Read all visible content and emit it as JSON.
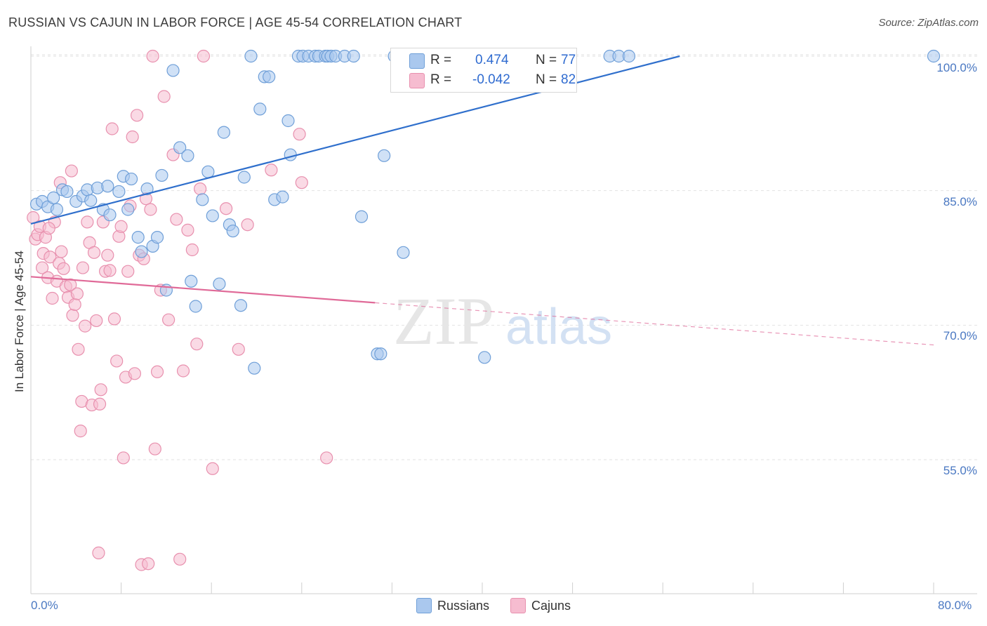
{
  "title": "RUSSIAN VS CAJUN IN LABOR FORCE | AGE 45-54 CORRELATION CHART",
  "source": "Source: ZipAtlas.com",
  "colors": {
    "russians_fill": "#aac8ee",
    "russians_stroke": "#6f9fd8",
    "russians_line": "#2f6fcc",
    "cajuns_fill": "#f6bcd0",
    "cajuns_stroke": "#e890ae",
    "cajuns_line": "#e06a98"
  },
  "legend": {
    "r_label": "R =",
    "n_label": "N =",
    "russians": {
      "r": "0.474",
      "n": "77"
    },
    "cajuns": {
      "r": "-0.042",
      "n": "82"
    }
  },
  "bottom_legend": {
    "russians": "Russians",
    "cajuns": "Cajuns"
  },
  "watermark": {
    "zip": "ZIP",
    "atlas": "atlas"
  },
  "chart_data": {
    "type": "scatter",
    "title": "RUSSIAN VS CAJUN IN LABOR FORCE | AGE 45-54 CORRELATION CHART",
    "xlabel": "",
    "ylabel": "In Labor Force | Age 45-54",
    "xlim": [
      0,
      80
    ],
    "ylim": [
      39,
      101
    ],
    "x_tick_labels": [
      "0.0%",
      "80.0%"
    ],
    "y_ticks": [
      55,
      70,
      85,
      100
    ],
    "y_tick_labels": [
      "55.0%",
      "70.0%",
      "85.0%",
      "100.0%"
    ],
    "series": [
      {
        "name": "Russians",
        "trend": {
          "x": [
            0,
            57.5
          ],
          "y": [
            81.3,
            100
          ]
        },
        "points": [
          [
            0.5,
            83.5
          ],
          [
            1,
            83.8
          ],
          [
            1.5,
            83.2
          ],
          [
            2,
            84.2
          ],
          [
            2.3,
            82.9
          ],
          [
            2.8,
            85.1
          ],
          [
            3.2,
            84.9
          ],
          [
            4,
            83.8
          ],
          [
            4.6,
            84.4
          ],
          [
            5,
            85.1
          ],
          [
            5.3,
            83.9
          ],
          [
            5.9,
            85.3
          ],
          [
            6.4,
            82.9
          ],
          [
            6.8,
            85.5
          ],
          [
            7,
            82.3
          ],
          [
            7.8,
            84.9
          ],
          [
            8.2,
            86.6
          ],
          [
            8.6,
            82.9
          ],
          [
            8.9,
            86.3
          ],
          [
            9.5,
            79.8
          ],
          [
            9.8,
            78.2
          ],
          [
            10.3,
            85.2
          ],
          [
            10.8,
            78.8
          ],
          [
            11.2,
            79.8
          ],
          [
            11.6,
            86.7
          ],
          [
            12,
            73.9
          ],
          [
            12.6,
            98.4
          ],
          [
            13.2,
            89.8
          ],
          [
            13.9,
            88.9
          ],
          [
            14.2,
            74.9
          ],
          [
            14.6,
            72.1
          ],
          [
            15.2,
            84.0
          ],
          [
            15.7,
            87.1
          ],
          [
            16.1,
            82.2
          ],
          [
            16.7,
            74.6
          ],
          [
            17.1,
            91.5
          ],
          [
            17.6,
            81.2
          ],
          [
            17.9,
            80.5
          ],
          [
            18.6,
            72.2
          ],
          [
            18.9,
            86.5
          ],
          [
            19.5,
            100
          ],
          [
            19.8,
            65.2
          ],
          [
            20.3,
            94.1
          ],
          [
            20.7,
            97.7
          ],
          [
            21.1,
            97.7
          ],
          [
            21.6,
            84.0
          ],
          [
            22.3,
            84.3
          ],
          [
            22.8,
            92.8
          ],
          [
            23,
            89.0
          ],
          [
            23.7,
            100
          ],
          [
            24.1,
            100
          ],
          [
            24.6,
            100
          ],
          [
            25.2,
            100
          ],
          [
            25.5,
            100
          ],
          [
            26.1,
            100
          ],
          [
            26.3,
            100
          ],
          [
            26.6,
            100
          ],
          [
            27,
            100
          ],
          [
            27.8,
            100
          ],
          [
            28.6,
            100
          ],
          [
            29.3,
            82.1
          ],
          [
            30.7,
            66.8
          ],
          [
            31,
            66.8
          ],
          [
            31.3,
            88.9
          ],
          [
            32.2,
            100
          ],
          [
            32.6,
            100
          ],
          [
            33,
            78.1
          ],
          [
            34.2,
            100
          ],
          [
            35.6,
            100
          ],
          [
            36.5,
            100
          ],
          [
            37.6,
            100
          ],
          [
            39,
            100
          ],
          [
            40.2,
            66.4
          ],
          [
            51.3,
            100
          ],
          [
            52.1,
            100
          ],
          [
            53,
            100
          ],
          [
            80,
            100
          ]
        ]
      },
      {
        "name": "Cajuns",
        "trend": {
          "x": [
            0,
            30.5
          ],
          "y": [
            75.4,
            72.5
          ]
        },
        "points": [
          [
            0.2,
            82.0
          ],
          [
            0.4,
            79.6
          ],
          [
            0.6,
            80.1
          ],
          [
            0.8,
            81.0
          ],
          [
            1,
            76.4
          ],
          [
            1.1,
            78.0
          ],
          [
            1.3,
            79.8
          ],
          [
            1.5,
            75.3
          ],
          [
            1.7,
            77.6
          ],
          [
            1.9,
            73.0
          ],
          [
            2.1,
            81.5
          ],
          [
            2.3,
            74.9
          ],
          [
            2.5,
            76.9
          ],
          [
            2.7,
            78.2
          ],
          [
            2.9,
            76.3
          ],
          [
            3.1,
            74.3
          ],
          [
            3.3,
            73.1
          ],
          [
            3.5,
            74.5
          ],
          [
            3.7,
            71.1
          ],
          [
            3.9,
            72.3
          ],
          [
            4.1,
            73.5
          ],
          [
            4.2,
            67.3
          ],
          [
            4.4,
            58.2
          ],
          [
            4.5,
            61.5
          ],
          [
            4.6,
            76.4
          ],
          [
            4.8,
            69.9
          ],
          [
            5,
            81.5
          ],
          [
            5.2,
            79.2
          ],
          [
            5.4,
            61.1
          ],
          [
            5.6,
            78.1
          ],
          [
            5.8,
            70.5
          ],
          [
            6,
            44.6
          ],
          [
            6.2,
            62.8
          ],
          [
            6.4,
            81.5
          ],
          [
            6.6,
            76.0
          ],
          [
            6.8,
            77.8
          ],
          [
            7,
            76.1
          ],
          [
            7.2,
            91.9
          ],
          [
            7.4,
            70.7
          ],
          [
            7.6,
            66.0
          ],
          [
            7.8,
            79.9
          ],
          [
            8,
            81.0
          ],
          [
            8.2,
            55.2
          ],
          [
            8.4,
            64.2
          ],
          [
            8.6,
            76.0
          ],
          [
            8.8,
            83.3
          ],
          [
            9,
            91.0
          ],
          [
            9.2,
            64.6
          ],
          [
            9.4,
            93.4
          ],
          [
            9.6,
            77.8
          ],
          [
            9.8,
            43.3
          ],
          [
            10,
            77.4
          ],
          [
            10.2,
            84.1
          ],
          [
            10.4,
            43.4
          ],
          [
            10.6,
            82.9
          ],
          [
            10.8,
            100
          ],
          [
            11,
            56.2
          ],
          [
            11.2,
            64.8
          ],
          [
            11.5,
            73.9
          ],
          [
            11.8,
            95.5
          ],
          [
            12.2,
            70.6
          ],
          [
            12.6,
            89.0
          ],
          [
            12.9,
            81.8
          ],
          [
            13.2,
            43.9
          ],
          [
            13.5,
            64.9
          ],
          [
            13.9,
            80.6
          ],
          [
            14.3,
            78.4
          ],
          [
            14.7,
            67.9
          ],
          [
            15,
            85.2
          ],
          [
            15.3,
            100
          ],
          [
            16.1,
            54.0
          ],
          [
            17.3,
            83.0
          ],
          [
            18.4,
            67.3
          ],
          [
            19.2,
            81.2
          ],
          [
            21.3,
            87.3
          ],
          [
            23.8,
            91.3
          ],
          [
            24.0,
            85.9
          ],
          [
            26.2,
            55.2
          ],
          [
            6.1,
            61.2
          ],
          [
            2.6,
            85.9
          ],
          [
            3.6,
            87.2
          ],
          [
            1.6,
            80.8
          ]
        ]
      }
    ]
  }
}
